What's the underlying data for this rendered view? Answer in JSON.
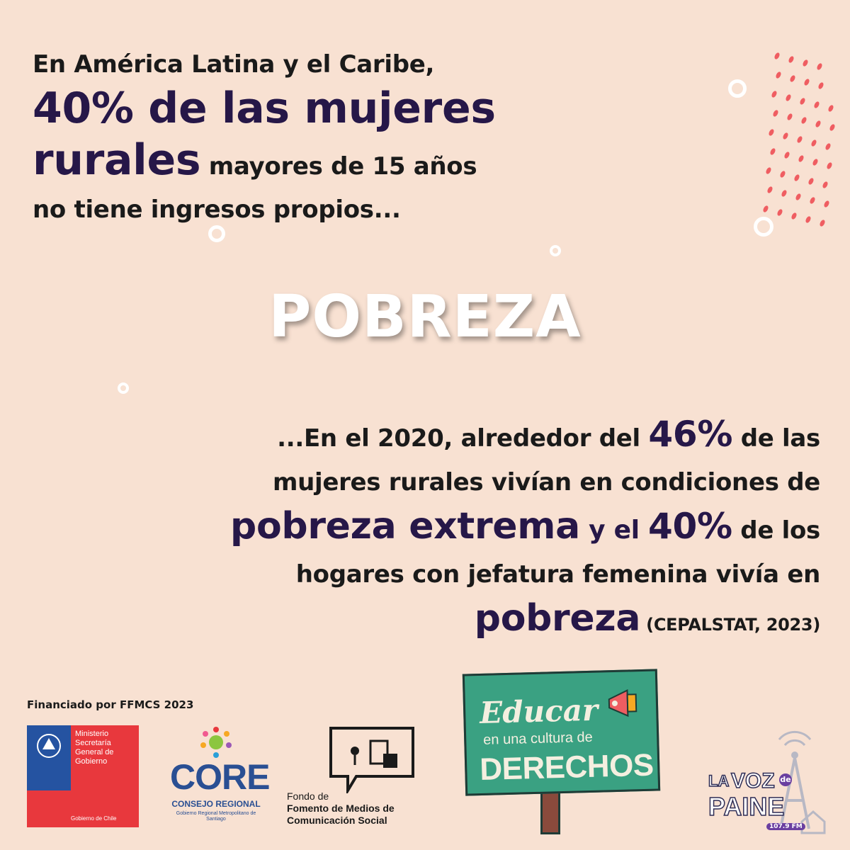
{
  "headline": {
    "line1": "En América Latina y el Caribe,",
    "line2": "40% de las mujeres",
    "line3_big": "rurales",
    "line3_rest": " mayores de 15 años",
    "line4": "no tiene ingresos propios..."
  },
  "title": "POBREZA",
  "body": {
    "l1_pre": "...En el 2020, alrededor del ",
    "l1_big": "46%",
    "l1_post": " de las",
    "l2": "mujeres rurales vivían en condiciones de",
    "l3_big": "pobreza extrema",
    "l3_mid": " y el ",
    "l3_big2": "40%",
    "l3_post": " de los",
    "l4": "hogares con jefatura femenina vivía en",
    "l5_big": "pobreza",
    "l5_src": " (CEPALSTAT, 2023)"
  },
  "footer": {
    "funded": "Financiado por FFMCS 2023",
    "ministerio": [
      "Ministerio",
      "Secretaría",
      "General de",
      "Gobierno"
    ],
    "ministerio_foot": "Gobierno de Chile",
    "core": "CORE",
    "core_sub": "CONSEJO REGIONAL",
    "core_sub2": "Gobierno Regional Metropolitano de Santiago",
    "fondo_line1": "Fondo de",
    "fondo_line2": "Fomento de Medios de",
    "fondo_line3": "Comunicación Social",
    "sign_educar": "Educar",
    "sign_mid": "en una cultura de",
    "sign_derechos": "DERECHOS",
    "radio_la": "LA",
    "radio_voz": "VOZ",
    "radio_de": "de",
    "radio_paine": "PAINE",
    "radio_fm": "107.9 FM"
  },
  "colors": {
    "background": "#f8e1d2",
    "accent_dark": "#261748",
    "dots": "#ef5d61",
    "sign_green": "#3aa182"
  }
}
